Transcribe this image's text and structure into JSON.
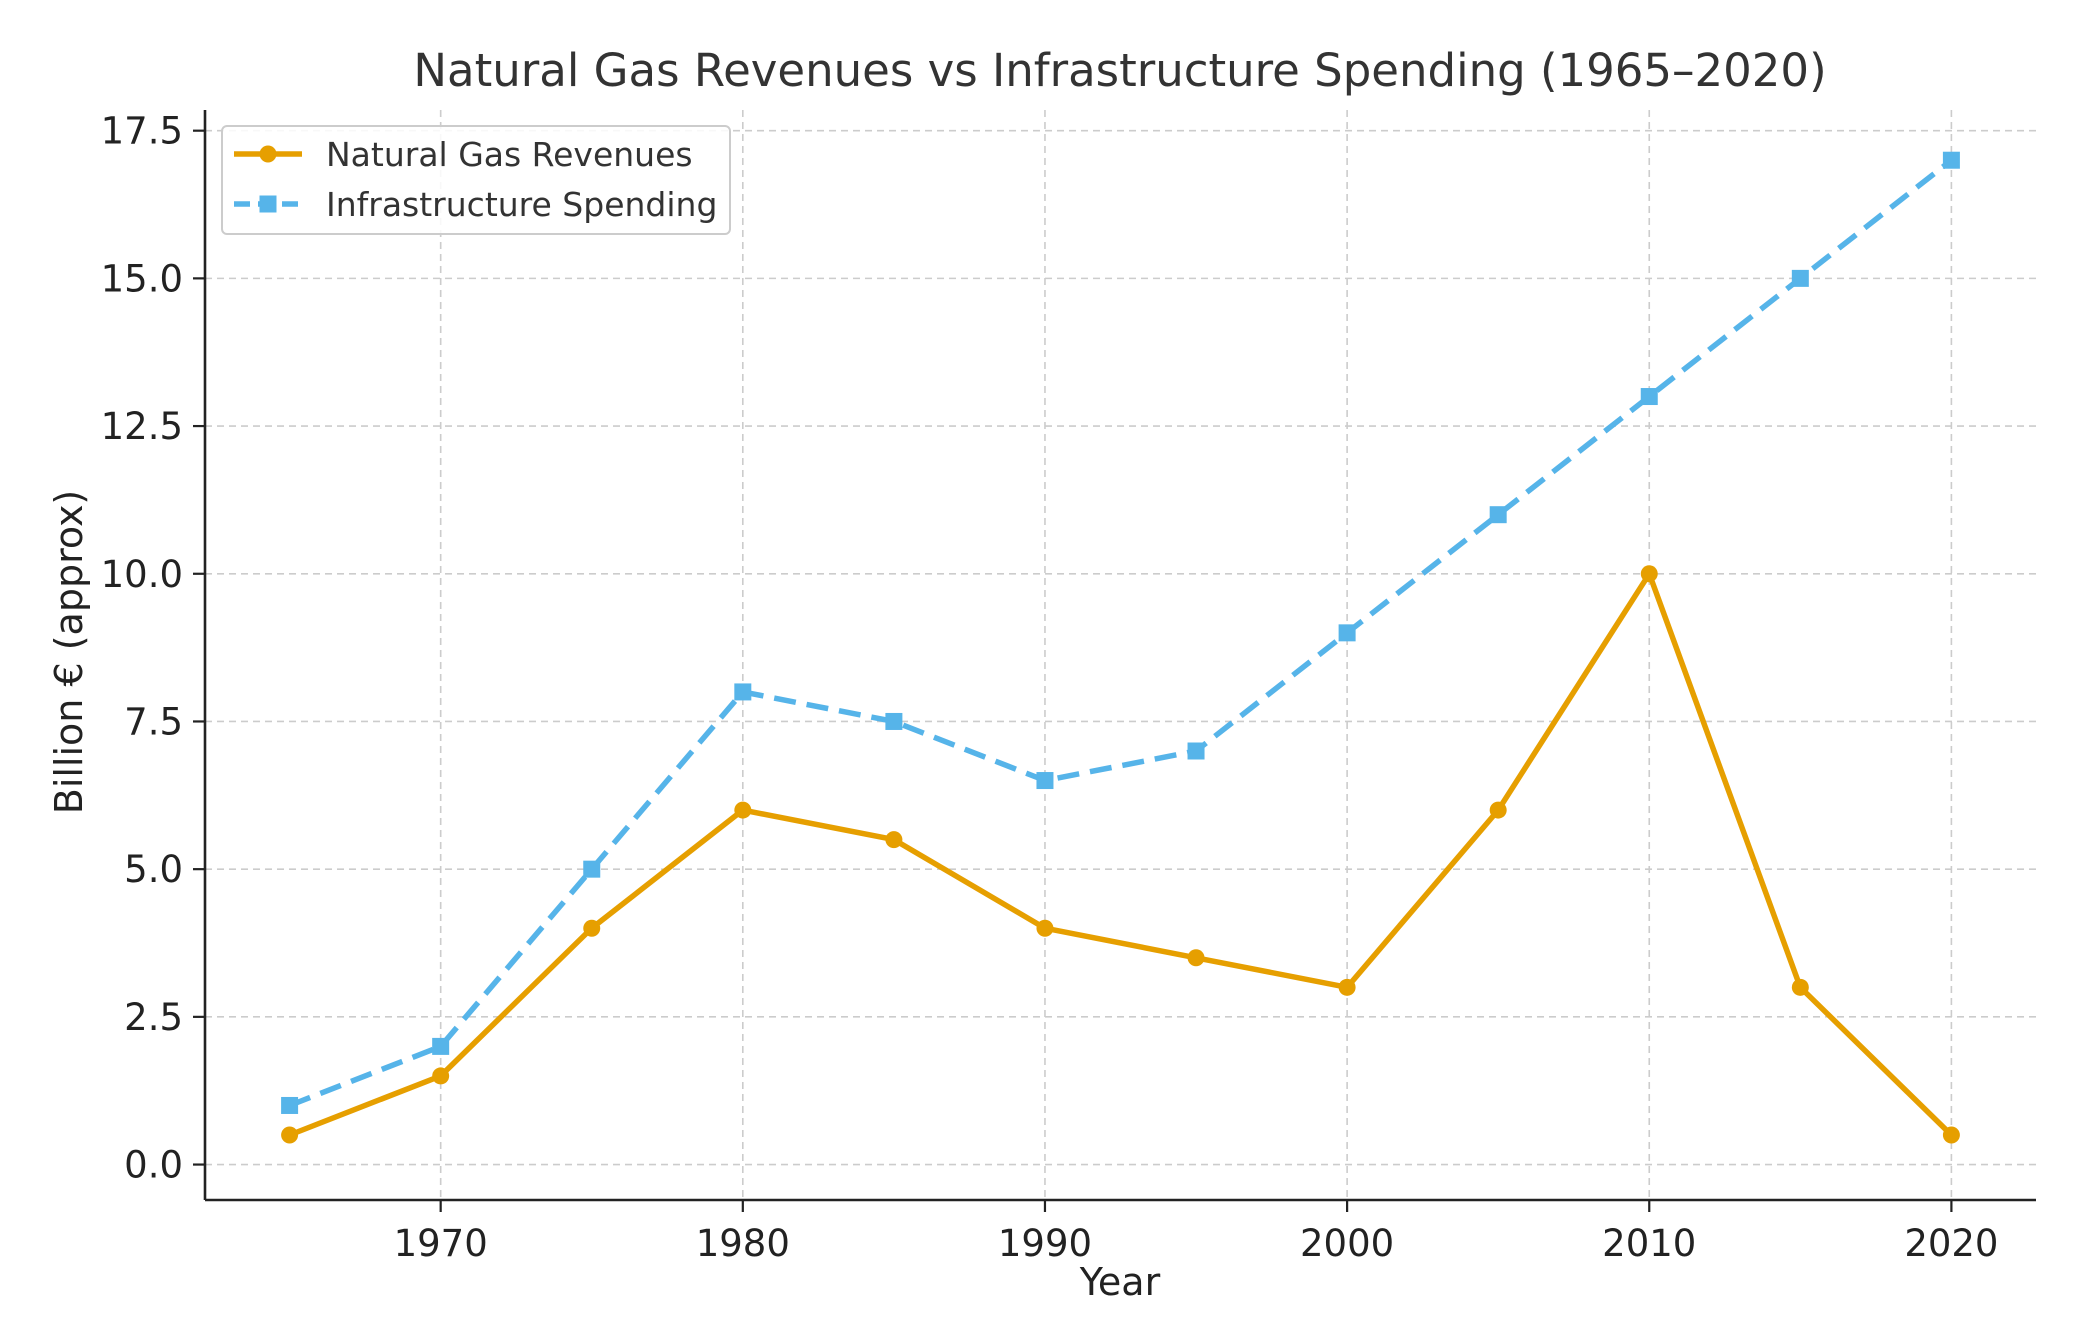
{
  "chart_data": {
    "type": "line",
    "title": "Natural Gas Revenues vs Infrastructure Spending (1965–2020)",
    "xlabel": "Year",
    "ylabel": "Billion € (approx)",
    "x": [
      1965,
      1970,
      1975,
      1980,
      1985,
      1990,
      1995,
      2000,
      2005,
      2010,
      2015,
      2020
    ],
    "xlim": [
      1962.2,
      2022.8
    ],
    "ylim": [
      -0.6,
      17.85
    ],
    "x_ticks": [
      1970,
      1980,
      1990,
      2000,
      2010,
      2020
    ],
    "x_tick_labels": [
      "1970",
      "1980",
      "1990",
      "2000",
      "2010",
      "2020"
    ],
    "y_ticks": [
      0,
      2.5,
      5,
      7.5,
      10,
      12.5,
      15,
      17.5
    ],
    "y_tick_labels": [
      "0.0",
      "2.5",
      "5.0",
      "7.5",
      "10.0",
      "12.5",
      "15.0",
      "17.5"
    ],
    "grid": true,
    "legend_position": "top-left",
    "series": [
      {
        "name": "Natural Gas Revenues",
        "color": "#E69F00",
        "line_style": "solid",
        "marker": "circle",
        "values": [
          0.5,
          1.5,
          4,
          6,
          5.5,
          4,
          3.5,
          3,
          6,
          10,
          3,
          0.5
        ]
      },
      {
        "name": "Infrastructure Spending",
        "color": "#56B4E9",
        "line_style": "dashed",
        "marker": "square",
        "values": [
          1,
          2,
          5,
          8,
          7.5,
          6.5,
          7,
          9,
          11,
          13,
          15,
          17
        ]
      }
    ]
  }
}
